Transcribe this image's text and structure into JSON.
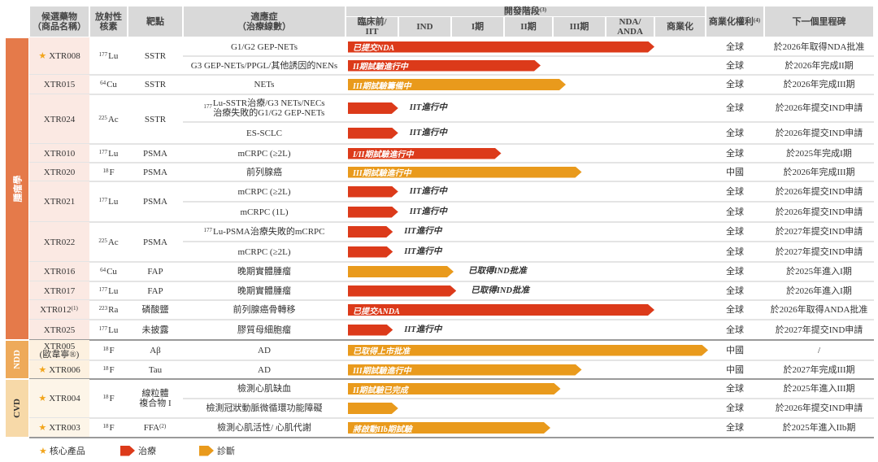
{
  "colors": {
    "treatment": "#dc3a1a",
    "diagnosis": "#e99a1c",
    "star": "#f2a51c",
    "header_bg": "#d9d9d9"
  },
  "header": {
    "drug": "候選藥物\n（商品名稱）",
    "nuclide": "放射性\n核素",
    "target": "靶點",
    "indication": "適應症\n（治療線數）",
    "stage_group": "開發階段",
    "stage_group_note": "(3)",
    "stages": [
      "臨床前/\nIIT",
      "IND",
      "I期",
      "II期",
      "III期",
      "NDA/\nANDA",
      "商業化"
    ],
    "rights": "商業化權利",
    "rights_note": "(4)",
    "milestone": "下一個里程碑"
  },
  "categories": [
    {
      "name": "腫瘤學",
      "color": "#e57a4a",
      "cell_bg": "#fbe9e3",
      "drugs": [
        {
          "name": "XTR008",
          "star": true,
          "nuclide_mass": "177",
          "nuclide": "Lu",
          "target": "SSTR",
          "indications": [
            {
              "name": "G1/G2 GEP-NETs",
              "bar": {
                "type": "treatment",
                "progress": 5.95,
                "label": "已提交NDA",
                "inside": true
              },
              "rights": "全球",
              "milestone": "於2026年取得NDA批准"
            },
            {
              "name": "G3 GEP-NETs/PPGL/其他誘因的NENs",
              "bar": {
                "type": "treatment",
                "progress": 3.7,
                "label": "II期試驗進行中",
                "inside": true
              },
              "rights": "全球",
              "milestone": "於2026年完成II期"
            }
          ]
        },
        {
          "name": "XTR015",
          "nuclide_mass": "64",
          "nuclide": "Cu",
          "target": "SSTR",
          "indications": [
            {
              "name": "NETs",
              "bar": {
                "type": "diagnosis",
                "progress": 4.2,
                "label": "III期試驗籌備中",
                "inside": true
              },
              "rights": "全球",
              "milestone": "於2026年完成III期"
            }
          ]
        },
        {
          "name": "XTR024",
          "nuclide_mass": "225",
          "nuclide": "Ac",
          "target": "SSTR",
          "indications": [
            {
              "sup": "177",
              "name": "Lu-SSTR治療/G3 NETs/NECs\n治療失敗的G1/G2 GEP-NETs",
              "bar": {
                "type": "treatment",
                "progress": 0.95,
                "label": "IIT進行中",
                "inside": false
              },
              "rights": "全球",
              "milestone": "於2026年提交IND申請"
            },
            {
              "name": "ES-SCLC",
              "bar": {
                "type": "treatment",
                "progress": 0.95,
                "label": "IIT進行中",
                "inside": false
              },
              "rights": "全球",
              "milestone": "於2026年提交IND申請"
            }
          ]
        },
        {
          "name": "XTR010",
          "nuclide_mass": "177",
          "nuclide": "Lu",
          "target": "PSMA",
          "indications": [
            {
              "name": "mCRPC (≥2L)",
              "bar": {
                "type": "treatment",
                "progress": 2.9,
                "label": "I/II期試驗進行中",
                "inside": true
              },
              "rights": "全球",
              "milestone": "於2025年完成I期"
            }
          ]
        },
        {
          "name": "XTR020",
          "nuclide_mass": "18",
          "nuclide": "F",
          "target": "PSMA",
          "indications": [
            {
              "name": "前列腺癌",
              "bar": {
                "type": "diagnosis",
                "progress": 4.5,
                "label": "III期試驗進行中",
                "inside": true
              },
              "rights": "中國",
              "milestone": "於2026年完成III期"
            }
          ]
        },
        {
          "name": "XTR021",
          "nuclide_mass": "177",
          "nuclide": "Lu",
          "target": "PSMA",
          "indications": [
            {
              "name": "mCRPC (≥2L)",
              "bar": {
                "type": "treatment",
                "progress": 0.95,
                "label": "IIT進行中",
                "inside": false
              },
              "rights": "全球",
              "milestone": "於2026年提交IND申請"
            },
            {
              "name": "mCRPC (1L)",
              "bar": {
                "type": "treatment",
                "progress": 0.95,
                "label": "IIT進行中",
                "inside": false
              },
              "rights": "全球",
              "milestone": "於2026年提交IND申請"
            }
          ]
        },
        {
          "name": "XTR022",
          "nuclide_mass": "225",
          "nuclide": "Ac",
          "target": "PSMA",
          "indications": [
            {
              "sup": "177",
              "name": "Lu-PSMA治療失敗的mCRPC",
              "bar": {
                "type": "treatment",
                "progress": 0.85,
                "label": "IIT進行中",
                "inside": false
              },
              "rights": "全球",
              "milestone": "於2027年提交IND申請"
            },
            {
              "name": "mCRPC (≥2L)",
              "bar": {
                "type": "treatment",
                "progress": 0.85,
                "label": "IIT進行中",
                "inside": false
              },
              "rights": "全球",
              "milestone": "於2027年提交IND申請"
            }
          ]
        },
        {
          "name": "XTR016",
          "nuclide_mass": "64",
          "nuclide": "Cu",
          "target": "FAP",
          "indications": [
            {
              "name": "晚期實體腫瘤",
              "bar": {
                "type": "diagnosis",
                "progress": 2.0,
                "label": "已取得IND批准",
                "inside": false
              },
              "rights": "全球",
              "milestone": "於2025年進入I期"
            }
          ]
        },
        {
          "name": "XTR017",
          "nuclide_mass": "177",
          "nuclide": "Lu",
          "target": "FAP",
          "indications": [
            {
              "name": "晚期實體腫瘤",
              "bar": {
                "type": "treatment",
                "progress": 2.05,
                "label": "已取得IND批准",
                "inside": false
              },
              "rights": "全球",
              "milestone": "於2026年進入I期"
            }
          ]
        },
        {
          "name": "XTR012",
          "note": "(1)",
          "nuclide_mass": "223",
          "nuclide": "Ra",
          "target": "磷酸鹽",
          "indications": [
            {
              "name": "前列腺癌骨轉移",
              "bar": {
                "type": "treatment",
                "progress": 5.95,
                "label": "已提交ANDA",
                "inside": true
              },
              "rights": "全球",
              "milestone": "於2026年取得ANDA批准"
            }
          ]
        },
        {
          "name": "XTR025",
          "nuclide_mass": "177",
          "nuclide": "Lu",
          "target": "未披露",
          "indications": [
            {
              "name": "膠質母細胞瘤",
              "bar": {
                "type": "treatment",
                "progress": 0.85,
                "label": "IIT進行中",
                "inside": false
              },
              "rights": "全球",
              "milestone": "於2027年提交IND申請"
            }
          ]
        }
      ]
    },
    {
      "name": "NDD",
      "color": "#eeaa5a",
      "cell_bg": "#fdf1e0",
      "drugs": [
        {
          "name": "XTR005",
          "subname": "(歐韋寧®)",
          "nuclide_mass": "18",
          "nuclide": "F",
          "target": "Aβ",
          "indications": [
            {
              "name": "AD",
              "bar": {
                "type": "diagnosis",
                "progress": 7.0,
                "label": "已取得上市批准",
                "inside": true
              },
              "rights": "中國",
              "milestone": "/"
            }
          ]
        },
        {
          "name": "XTR006",
          "star": true,
          "nuclide_mass": "18",
          "nuclide": "F",
          "target": "Tau",
          "indications": [
            {
              "name": "AD",
              "bar": {
                "type": "diagnosis",
                "progress": 4.5,
                "label": "III期試驗進行中",
                "inside": true
              },
              "rights": "中國",
              "milestone": "於2027年完成III期"
            }
          ]
        }
      ]
    },
    {
      "name": "CVD",
      "color": "#f7d9a8",
      "text_color": "#333",
      "cell_bg": "#fdf5e8",
      "drugs": [
        {
          "name": "XTR004",
          "star": true,
          "nuclide_mass": "18",
          "nuclide": "F",
          "target": "線粒體\n複合物 I",
          "indications": [
            {
              "name": "檢測心肌缺血",
              "bar": {
                "type": "diagnosis",
                "progress": 4.1,
                "label": "II期試驗已完成",
                "inside": true
              },
              "rights": "全球",
              "milestone": "於2025年進入III期"
            },
            {
              "name": "檢測冠狀動脈微循環功能障礙",
              "bar": {
                "type": "diagnosis",
                "progress": 0.95,
                "label": "",
                "inside": false
              },
              "rights": "全球",
              "milestone": "於2026年提交IND申請"
            }
          ]
        },
        {
          "name": "XTR003",
          "star": true,
          "nuclide_mass": "18",
          "nuclide": "F",
          "target": "FFA",
          "target_note": "(2)",
          "indications": [
            {
              "name": "檢測心肌活性/ 心肌代謝",
              "bar": {
                "type": "diagnosis",
                "progress": 3.9,
                "label": "將啟動IIb期試驗",
                "inside": true
              },
              "rights": "全球",
              "milestone": "於2025年進入IIb期"
            }
          ]
        }
      ]
    }
  ],
  "legend": {
    "core": "核心產品",
    "treatment": "治療",
    "diagnosis": "診斷"
  }
}
